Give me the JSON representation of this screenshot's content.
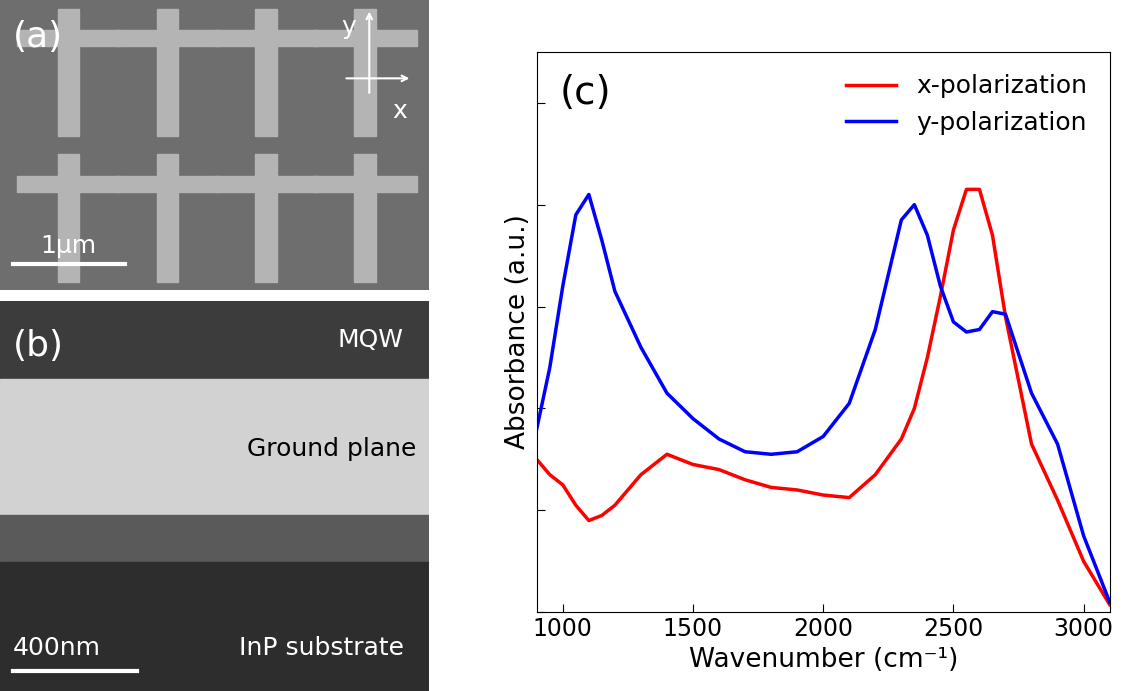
{
  "panels": {
    "a": {
      "label": "(a)",
      "axis_labels": [
        "x",
        "y"
      ],
      "scale_bar": "1μm"
    },
    "b": {
      "label": "(b)",
      "layers": [
        "MQW",
        "Ground plane",
        "InP substrate"
      ],
      "scale_bar": "400nm"
    }
  },
  "chart_data": {
    "type": "line",
    "panel_label": "(c)",
    "xlabel": "Wavenumber (cm⁻¹)",
    "ylabel": "Absorbance (a.u.)",
    "x": [
      900,
      950,
      1000,
      1050,
      1100,
      1150,
      1200,
      1300,
      1400,
      1500,
      1600,
      1700,
      1800,
      1900,
      2000,
      2100,
      2200,
      2300,
      2350,
      2400,
      2450,
      2500,
      2550,
      2600,
      2650,
      2700,
      2800,
      2900,
      3000,
      3100
    ],
    "series": [
      {
        "name": "x-polarization",
        "color": "#ff0000",
        "values": [
          0.3,
          0.27,
          0.25,
          0.21,
          0.18,
          0.19,
          0.21,
          0.27,
          0.31,
          0.29,
          0.28,
          0.26,
          0.245,
          0.24,
          0.23,
          0.225,
          0.27,
          0.34,
          0.4,
          0.5,
          0.62,
          0.75,
          0.83,
          0.83,
          0.74,
          0.58,
          0.33,
          0.22,
          0.1,
          0.015
        ]
      },
      {
        "name": "y-polarization",
        "color": "#0000ff",
        "values": [
          0.36,
          0.48,
          0.64,
          0.78,
          0.82,
          0.73,
          0.63,
          0.52,
          0.43,
          0.38,
          0.34,
          0.315,
          0.31,
          0.315,
          0.345,
          0.41,
          0.555,
          0.77,
          0.8,
          0.74,
          0.64,
          0.57,
          0.55,
          0.555,
          0.59,
          0.585,
          0.43,
          0.33,
          0.15,
          0.02
        ]
      }
    ],
    "xlim": [
      900,
      3100
    ],
    "xticks": [
      1000,
      1500,
      2000,
      2500,
      3000
    ],
    "ylim": [
      0,
      1.1
    ],
    "yticks": [
      0,
      0.2,
      0.4,
      0.6,
      0.8,
      1.0
    ],
    "tick_labels": "x",
    "legend": "upper right"
  }
}
